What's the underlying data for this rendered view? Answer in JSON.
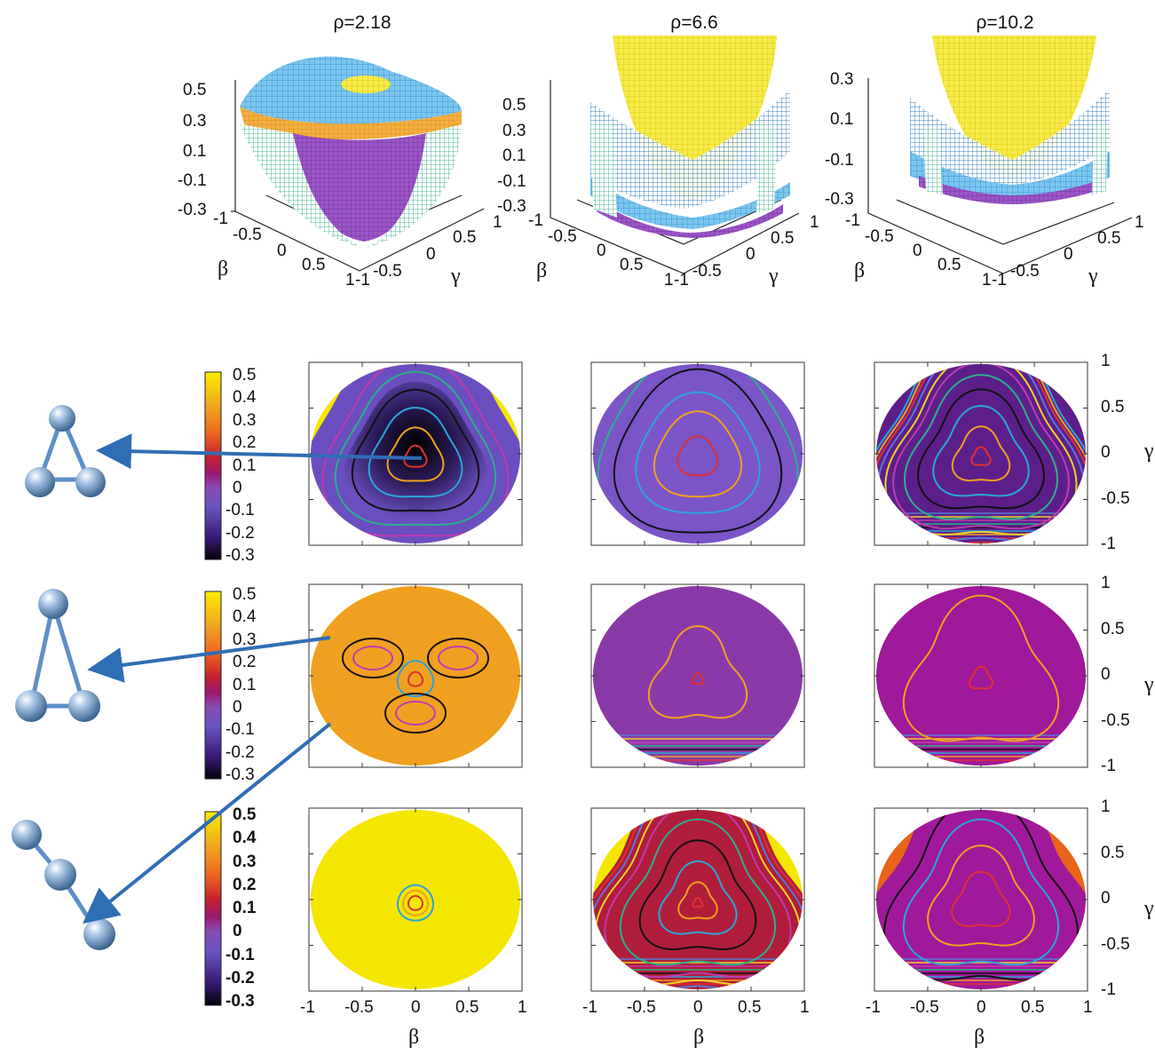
{
  "figure": {
    "titles": [
      "ρ=2.18",
      "ρ=6.6",
      "ρ=10.2"
    ],
    "axis_beta": "β",
    "axis_gamma": "γ",
    "surface_ticks": [
      [
        "0.5",
        "0.3",
        "0.1",
        "-0.1",
        "-0.3"
      ],
      [
        "0.5",
        "0.3",
        "0.1",
        "-0.1",
        "-0.3"
      ],
      [
        "0.3",
        "0.1",
        "-0.1",
        "-0.3"
      ]
    ],
    "beta_ticks_3d": [
      "-1",
      "-0.5",
      "0",
      "0.5",
      "1"
    ],
    "gamma_ticks_3d": [
      "-1",
      "-0.5",
      "0",
      "0.5",
      "1"
    ],
    "colorbar_ticks": [
      "0.5",
      "0.4",
      "0.3",
      "0.2",
      "0.1",
      "0",
      "-0.1",
      "-0.2",
      "-0.3"
    ],
    "contour_x_ticks": [
      "-1",
      "-0.5",
      "0",
      "0.5",
      "1"
    ],
    "contour_y_ticks": [
      "1",
      "0.5",
      "0",
      "-0.5",
      "-1"
    ]
  },
  "chart_data": [
    {
      "type": "heatmap",
      "description_kind": "3d-surface-row",
      "panels": [
        {
          "title": "ρ=2.18",
          "zlim": [
            -0.3,
            0.5
          ],
          "xlabel": "β",
          "ylabel": "γ"
        },
        {
          "title": "ρ=6.6",
          "zlim": [
            -0.3,
            0.5
          ],
          "xlabel": "β",
          "ylabel": "γ"
        },
        {
          "title": "ρ=10.2",
          "zlim": [
            -0.3,
            0.3
          ],
          "xlabel": "β",
          "ylabel": "γ"
        }
      ]
    },
    {
      "type": "heatmap",
      "description_kind": "contour-grid",
      "xlabel": "β",
      "ylabel": "γ",
      "xlim": [
        -1,
        1
      ],
      "ylim": [
        -1,
        1
      ],
      "colorbar_range": [
        -0.3,
        0.5
      ],
      "rows": 3,
      "cols": 3
    }
  ],
  "colors": {
    "arrow": "#2f6db5",
    "sphere": "#8fb2d9",
    "rod": "#5d8fc9",
    "purple": "#7b2fa8",
    "yellow": "#f5e600",
    "orange": "#f0a020",
    "magenta": "#a0198f"
  }
}
